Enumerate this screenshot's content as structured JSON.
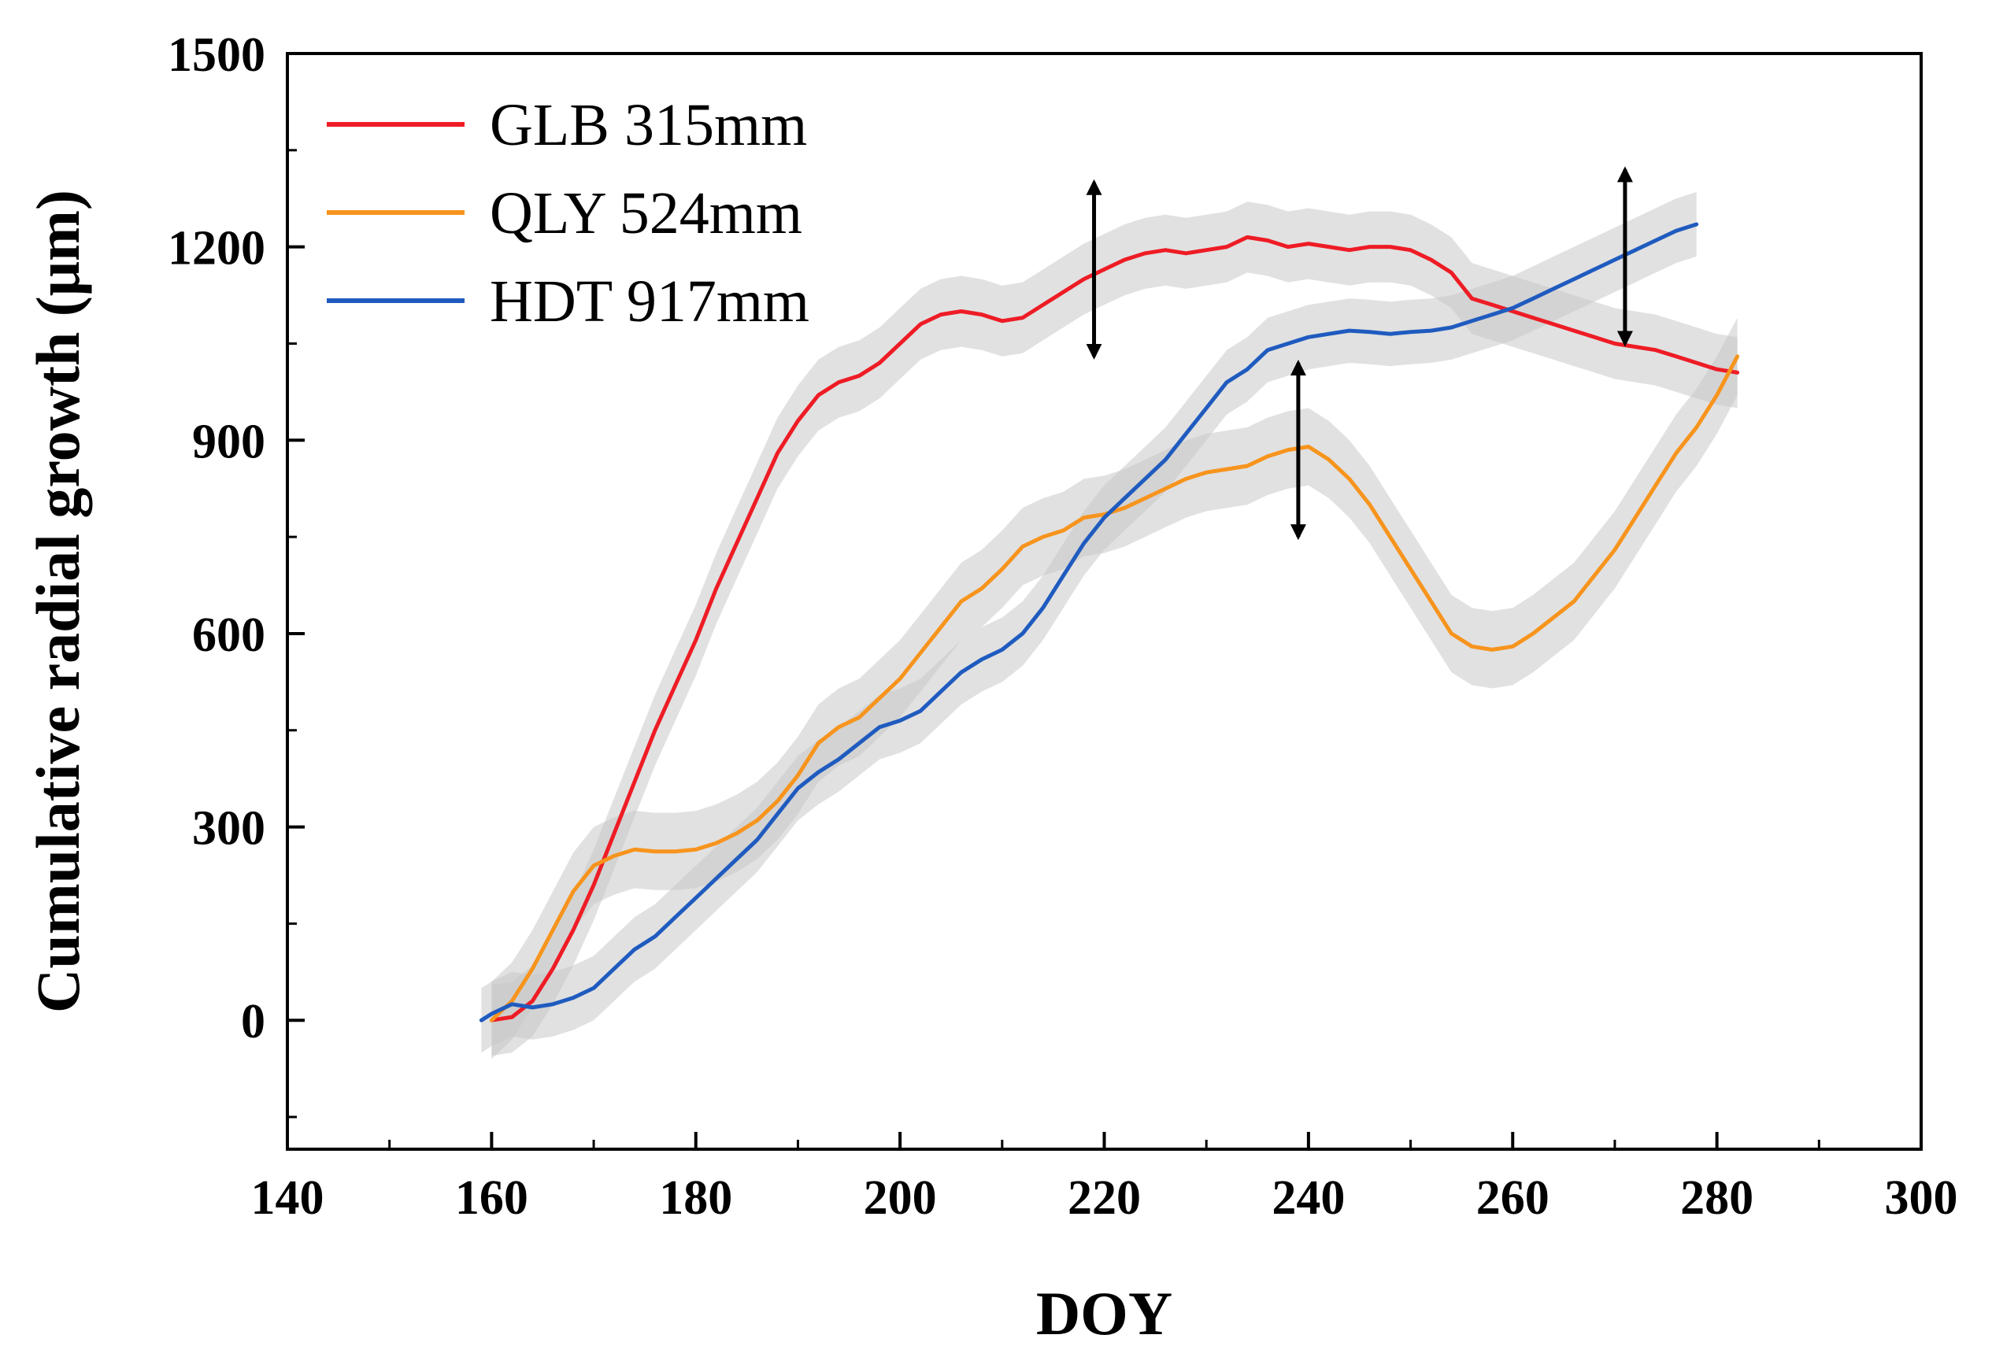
{
  "chart_data": {
    "type": "line",
    "xlabel": "DOY",
    "ylabel": "Cumulative radial growth (μm)",
    "xlim": [
      140,
      300
    ],
    "ylim": [
      -200,
      1500
    ],
    "xticks": [
      140,
      160,
      180,
      200,
      220,
      240,
      260,
      280,
      300
    ],
    "xtick_labels": [
      "140",
      "160",
      "180",
      "200",
      "220",
      "240",
      "260",
      "280",
      "300"
    ],
    "yticks": [
      0,
      300,
      600,
      900,
      1200,
      1500
    ],
    "ytick_labels": [
      "0",
      "300",
      "600",
      "900",
      "1200",
      "1500"
    ],
    "grid": false,
    "legend_position": "top-left",
    "series": [
      {
        "name": "GLB 315mm",
        "color": "#ee1c25",
        "band_halfwidth": 55,
        "x": [
          160,
          162,
          164,
          166,
          168,
          170,
          172,
          174,
          176,
          178,
          180,
          182,
          184,
          186,
          188,
          190,
          192,
          194,
          196,
          198,
          200,
          202,
          204,
          206,
          208,
          210,
          212,
          214,
          216,
          218,
          220,
          222,
          224,
          226,
          228,
          230,
          232,
          234,
          236,
          238,
          240,
          242,
          244,
          246,
          248,
          250,
          252,
          254,
          256,
          258,
          260,
          262,
          264,
          266,
          268,
          270,
          272,
          274,
          276,
          278,
          280,
          282
        ],
        "values": [
          0,
          5,
          30,
          80,
          140,
          210,
          290,
          370,
          450,
          520,
          590,
          670,
          740,
          810,
          880,
          930,
          970,
          990,
          1000,
          1020,
          1050,
          1080,
          1095,
          1100,
          1095,
          1085,
          1090,
          1110,
          1130,
          1150,
          1165,
          1180,
          1190,
          1195,
          1190,
          1195,
          1200,
          1215,
          1210,
          1200,
          1205,
          1200,
          1195,
          1200,
          1200,
          1195,
          1180,
          1160,
          1120,
          1110,
          1100,
          1090,
          1080,
          1070,
          1060,
          1050,
          1045,
          1040,
          1030,
          1020,
          1010,
          1005
        ]
      },
      {
        "name": "QLY 524mm",
        "color": "#f7941d",
        "band_halfwidth": 60,
        "x": [
          160,
          162,
          164,
          166,
          168,
          170,
          172,
          174,
          176,
          178,
          180,
          182,
          184,
          186,
          188,
          190,
          192,
          194,
          196,
          198,
          200,
          202,
          204,
          206,
          208,
          210,
          212,
          214,
          216,
          218,
          220,
          222,
          224,
          226,
          228,
          230,
          232,
          234,
          236,
          238,
          240,
          242,
          244,
          246,
          248,
          250,
          252,
          254,
          256,
          258,
          260,
          262,
          264,
          266,
          268,
          270,
          272,
          274,
          276,
          278,
          280,
          282
        ],
        "values": [
          0,
          30,
          80,
          140,
          200,
          240,
          255,
          265,
          262,
          262,
          265,
          275,
          290,
          310,
          340,
          380,
          430,
          455,
          470,
          500,
          530,
          570,
          610,
          650,
          670,
          700,
          735,
          750,
          760,
          780,
          785,
          795,
          810,
          825,
          840,
          850,
          855,
          860,
          875,
          885,
          890,
          870,
          840,
          800,
          750,
          700,
          650,
          600,
          580,
          575,
          580,
          600,
          625,
          650,
          690,
          730,
          780,
          830,
          880,
          920,
          970,
          1030
        ]
      },
      {
        "name": "HDT 917mm",
        "color": "#1f5bbf",
        "band_halfwidth": 50,
        "x": [
          159,
          160,
          162,
          164,
          166,
          168,
          170,
          172,
          174,
          176,
          178,
          180,
          182,
          184,
          186,
          188,
          190,
          192,
          194,
          196,
          198,
          200,
          202,
          204,
          206,
          208,
          210,
          212,
          214,
          216,
          218,
          220,
          222,
          224,
          226,
          228,
          230,
          232,
          234,
          236,
          238,
          240,
          242,
          244,
          246,
          248,
          250,
          252,
          254,
          256,
          258,
          260,
          262,
          264,
          266,
          268,
          270,
          272,
          274,
          276,
          278
        ],
        "values": [
          0,
          10,
          25,
          20,
          25,
          35,
          50,
          80,
          110,
          130,
          160,
          190,
          220,
          250,
          280,
          320,
          360,
          385,
          405,
          430,
          455,
          465,
          480,
          510,
          540,
          560,
          575,
          600,
          640,
          690,
          740,
          780,
          810,
          840,
          870,
          910,
          950,
          990,
          1010,
          1040,
          1050,
          1060,
          1065,
          1070,
          1068,
          1065,
          1068,
          1070,
          1075,
          1085,
          1095,
          1105,
          1120,
          1135,
          1150,
          1165,
          1180,
          1195,
          1210,
          1225,
          1235
        ]
      }
    ],
    "annotations": [
      {
        "type": "double-arrow",
        "x": 219,
        "y_from": 1030,
        "y_to": 1300
      },
      {
        "type": "double-arrow",
        "x": 239,
        "y_from": 750,
        "y_to": 1020
      },
      {
        "type": "double-arrow",
        "x": 271,
        "y_from": 1050,
        "y_to": 1320
      }
    ]
  }
}
